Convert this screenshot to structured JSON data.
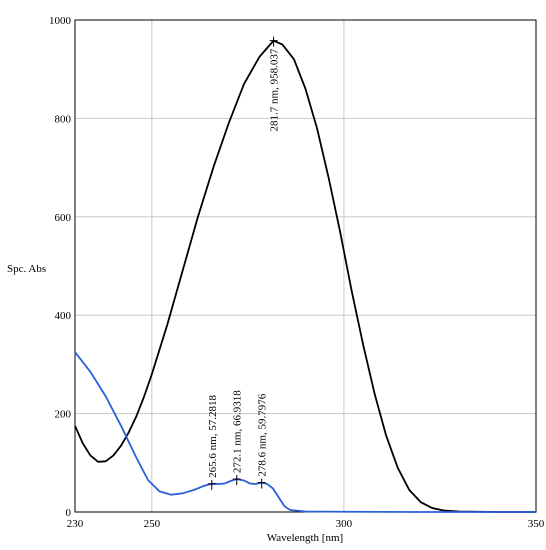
{
  "chart_data": {
    "type": "line",
    "xlabel": "Wavelength [nm]",
    "ylabel": "Spc. Abs",
    "xlim": [
      230,
      350
    ],
    "ylim": [
      0,
      1000
    ],
    "x_ticks": [
      230,
      250,
      300,
      350
    ],
    "y_ticks": [
      0,
      200,
      400,
      600,
      800,
      1000
    ],
    "grid": true,
    "series": [
      {
        "color": "#000000",
        "points": [
          [
            230,
            175
          ],
          [
            232,
            140
          ],
          [
            234,
            115
          ],
          [
            236,
            102
          ],
          [
            238,
            103
          ],
          [
            240,
            115
          ],
          [
            242,
            135
          ],
          [
            244,
            162
          ],
          [
            246,
            195
          ],
          [
            248,
            235
          ],
          [
            250,
            280
          ],
          [
            254,
            380
          ],
          [
            258,
            490
          ],
          [
            262,
            600
          ],
          [
            266,
            700
          ],
          [
            270,
            790
          ],
          [
            274,
            870
          ],
          [
            278,
            925
          ],
          [
            281.7,
            958.037
          ],
          [
            284,
            950
          ],
          [
            287,
            920
          ],
          [
            290,
            860
          ],
          [
            293,
            780
          ],
          [
            296,
            680
          ],
          [
            299,
            570
          ],
          [
            302,
            450
          ],
          [
            305,
            340
          ],
          [
            308,
            240
          ],
          [
            311,
            155
          ],
          [
            314,
            90
          ],
          [
            317,
            45
          ],
          [
            320,
            20
          ],
          [
            323,
            8
          ],
          [
            326,
            3
          ],
          [
            330,
            1
          ],
          [
            340,
            0
          ],
          [
            350,
            0
          ]
        ]
      },
      {
        "color": "#2b5fd9",
        "points": [
          [
            230,
            325
          ],
          [
            234,
            285
          ],
          [
            238,
            235
          ],
          [
            242,
            175
          ],
          [
            246,
            110
          ],
          [
            249,
            65
          ],
          [
            252,
            42
          ],
          [
            255,
            35
          ],
          [
            258,
            38
          ],
          [
            261,
            45
          ],
          [
            263.5,
            53
          ],
          [
            265.6,
            57.2818
          ],
          [
            267.5,
            57
          ],
          [
            269,
            58
          ],
          [
            270.5,
            63
          ],
          [
            272.1,
            66.9318
          ],
          [
            274,
            64
          ],
          [
            275.5,
            58
          ],
          [
            277,
            57
          ],
          [
            278.6,
            59.7976
          ],
          [
            280,
            57
          ],
          [
            281.5,
            48
          ],
          [
            283,
            30
          ],
          [
            284.5,
            12
          ],
          [
            286,
            4
          ],
          [
            290,
            1
          ],
          [
            300,
            0.5
          ],
          [
            320,
            0
          ],
          [
            350,
            0
          ]
        ]
      }
    ],
    "annotations": [
      {
        "text": "281.7 nm, 958.037",
        "x": 281.7,
        "y": 958.037
      },
      {
        "text": "265.6 nm, 57.2818",
        "x": 265.6,
        "y": 57.2818
      },
      {
        "text": "272.1 nm, 66.9318",
        "x": 272.1,
        "y": 66.9318
      },
      {
        "text": "278.6 nm, 59.7976",
        "x": 278.6,
        "y": 59.7976
      }
    ]
  }
}
